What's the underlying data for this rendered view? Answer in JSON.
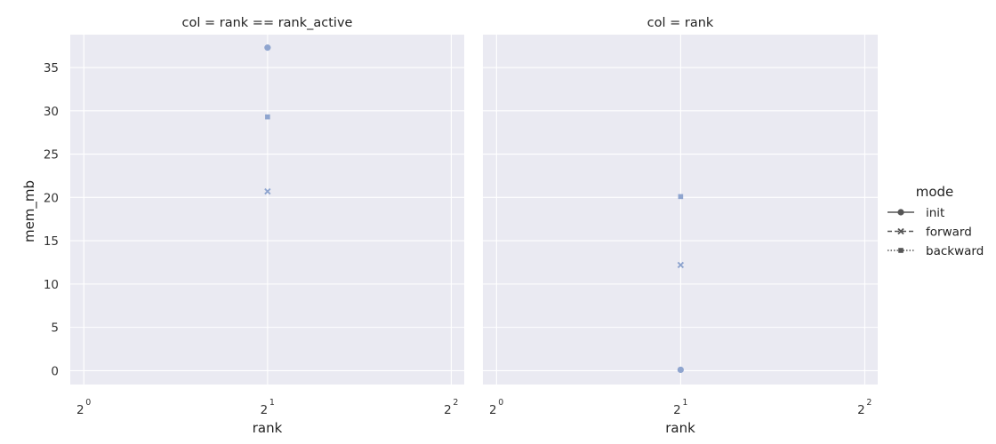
{
  "chart_data": {
    "type": "scatter",
    "ylabel": "mem_mb",
    "ylim": [
      -1.6,
      38.8
    ],
    "yticks": [
      0,
      5,
      10,
      15,
      20,
      25,
      30,
      35
    ],
    "x_scale": "log2",
    "xlim": [
      0.95,
      4.2
    ],
    "xticks": [
      {
        "base": "2",
        "exp": "0",
        "value": 1
      },
      {
        "base": "2",
        "exp": "1",
        "value": 2
      },
      {
        "base": "2",
        "exp": "2",
        "value": 4
      }
    ],
    "grid": true,
    "legend": {
      "title": "mode",
      "placement": "right",
      "entries": [
        {
          "label": "init",
          "marker": "circle",
          "dash": "solid"
        },
        {
          "label": "forward",
          "marker": "x",
          "dash": "dashed"
        },
        {
          "label": "backward",
          "marker": "square",
          "dash": "dotted"
        }
      ]
    },
    "point_color": "#8fa5cf",
    "panels": [
      {
        "title": "col = rank == rank_active",
        "xlabel": "rank",
        "points": [
          {
            "mode": "init",
            "x": 2,
            "y": 37.3
          },
          {
            "mode": "forward",
            "x": 2,
            "y": 20.7
          },
          {
            "mode": "backward",
            "x": 2,
            "y": 29.3
          }
        ]
      },
      {
        "title": "col = rank",
        "xlabel": "rank",
        "points": [
          {
            "mode": "init",
            "x": 2,
            "y": 0.1
          },
          {
            "mode": "forward",
            "x": 2,
            "y": 12.2
          },
          {
            "mode": "backward",
            "x": 2,
            "y": 20.1
          }
        ]
      }
    ]
  }
}
